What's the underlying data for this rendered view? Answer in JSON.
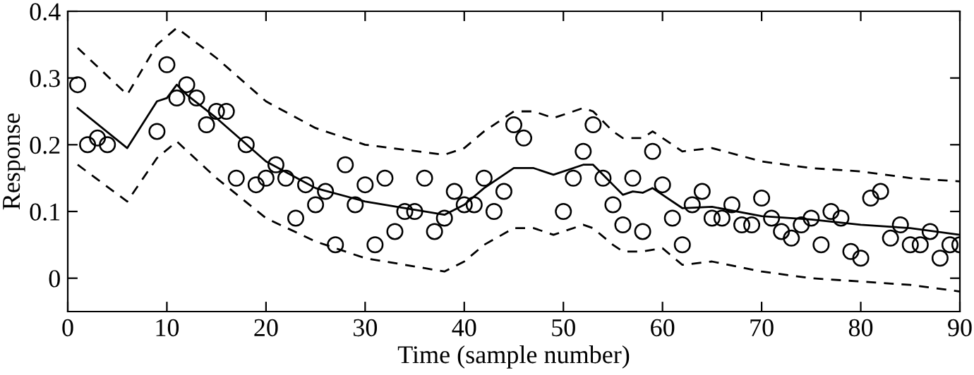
{
  "chart_data": {
    "type": "line",
    "xlabel": "Time (sample number)",
    "ylabel": "Response",
    "xlim": [
      0,
      90
    ],
    "xticks": [
      0,
      10,
      20,
      30,
      40,
      50,
      60,
      70,
      80,
      90
    ],
    "ylim": [
      -0.05,
      0.4
    ],
    "yticks": [
      0,
      0.1,
      0.2,
      0.3,
      0.4
    ],
    "grid": false,
    "legend": false,
    "series": [
      {
        "type": "scatter",
        "marker": "circle",
        "color": "#000000",
        "x": [
          1,
          2,
          3,
          4,
          9,
          10,
          11,
          12,
          13,
          14,
          15,
          16,
          17,
          18,
          19,
          20,
          21,
          22,
          23,
          24,
          25,
          26,
          27,
          28,
          29,
          30,
          31,
          32,
          33,
          34,
          35,
          36,
          37,
          38,
          39,
          40,
          41,
          42,
          43,
          44,
          45,
          46,
          50,
          51,
          52,
          53,
          54,
          55,
          56,
          57,
          58,
          59,
          60,
          61,
          62,
          63,
          64,
          65,
          66,
          67,
          68,
          69,
          70,
          71,
          72,
          73,
          74,
          75,
          76,
          77,
          78,
          79,
          80,
          81,
          82,
          83,
          84,
          85,
          86,
          87,
          88,
          89,
          90
        ],
        "values": [
          0.29,
          0.2,
          0.21,
          0.2,
          0.22,
          0.32,
          0.27,
          0.29,
          0.27,
          0.23,
          0.25,
          0.25,
          0.15,
          0.2,
          0.14,
          0.15,
          0.17,
          0.15,
          0.09,
          0.14,
          0.11,
          0.13,
          0.05,
          0.17,
          0.11,
          0.14,
          0.05,
          0.15,
          0.07,
          0.1,
          0.1,
          0.15,
          0.07,
          0.09,
          0.13,
          0.11,
          0.11,
          0.15,
          0.1,
          0.13,
          0.23,
          0.21,
          0.1,
          0.15,
          0.19,
          0.23,
          0.15,
          0.11,
          0.08,
          0.15,
          0.07,
          0.19,
          0.14,
          0.09,
          0.05,
          0.11,
          0.13,
          0.09,
          0.09,
          0.11,
          0.08,
          0.08,
          0.12,
          0.09,
          0.07,
          0.06,
          0.08,
          0.09,
          0.05,
          0.1,
          0.09,
          0.04,
          0.03,
          0.12,
          0.13,
          0.06,
          0.08,
          0.05,
          0.05,
          0.07,
          0.03,
          0.05,
          0.05
        ]
      },
      {
        "line_style": "solid",
        "color": "#000000",
        "x": [
          1,
          6,
          9,
          10,
          11,
          12,
          15,
          20,
          25,
          30,
          38,
          40,
          42,
          45,
          47,
          49,
          52,
          53,
          55,
          56,
          57,
          58,
          59,
          60,
          62,
          65,
          70,
          75,
          80,
          85,
          90
        ],
        "values": [
          0.255,
          0.195,
          0.265,
          0.27,
          0.29,
          0.275,
          0.24,
          0.175,
          0.135,
          0.115,
          0.095,
          0.11,
          0.135,
          0.165,
          0.165,
          0.155,
          0.17,
          0.17,
          0.14,
          0.125,
          0.13,
          0.128,
          0.135,
          0.125,
          0.105,
          0.107,
          0.093,
          0.088,
          0.08,
          0.075,
          0.065
        ]
      },
      {
        "line_style": "dashed",
        "color": "#000000",
        "x": [
          1,
          6,
          9,
          11,
          15,
          20,
          25,
          30,
          38,
          40,
          42,
          45,
          47,
          49,
          52,
          53,
          55,
          56,
          58,
          59,
          60,
          62,
          65,
          70,
          75,
          80,
          85,
          90
        ],
        "values": [
          0.345,
          0.275,
          0.35,
          0.375,
          0.33,
          0.265,
          0.225,
          0.2,
          0.185,
          0.195,
          0.22,
          0.25,
          0.25,
          0.24,
          0.255,
          0.25,
          0.22,
          0.21,
          0.21,
          0.22,
          0.21,
          0.19,
          0.195,
          0.175,
          0.165,
          0.16,
          0.15,
          0.145
        ]
      },
      {
        "line_style": "dashed",
        "color": "#000000",
        "x": [
          1,
          6,
          9,
          11,
          15,
          20,
          25,
          30,
          38,
          40,
          42,
          45,
          47,
          49,
          52,
          53,
          55,
          56,
          58,
          60,
          62,
          65,
          70,
          75,
          80,
          85,
          90
        ],
        "values": [
          0.17,
          0.115,
          0.18,
          0.205,
          0.15,
          0.09,
          0.055,
          0.03,
          0.01,
          0.025,
          0.05,
          0.075,
          0.075,
          0.065,
          0.08,
          0.075,
          0.05,
          0.04,
          0.04,
          0.045,
          0.02,
          0.025,
          0.01,
          0.0,
          -0.005,
          -0.01,
          -0.02
        ]
      }
    ]
  }
}
